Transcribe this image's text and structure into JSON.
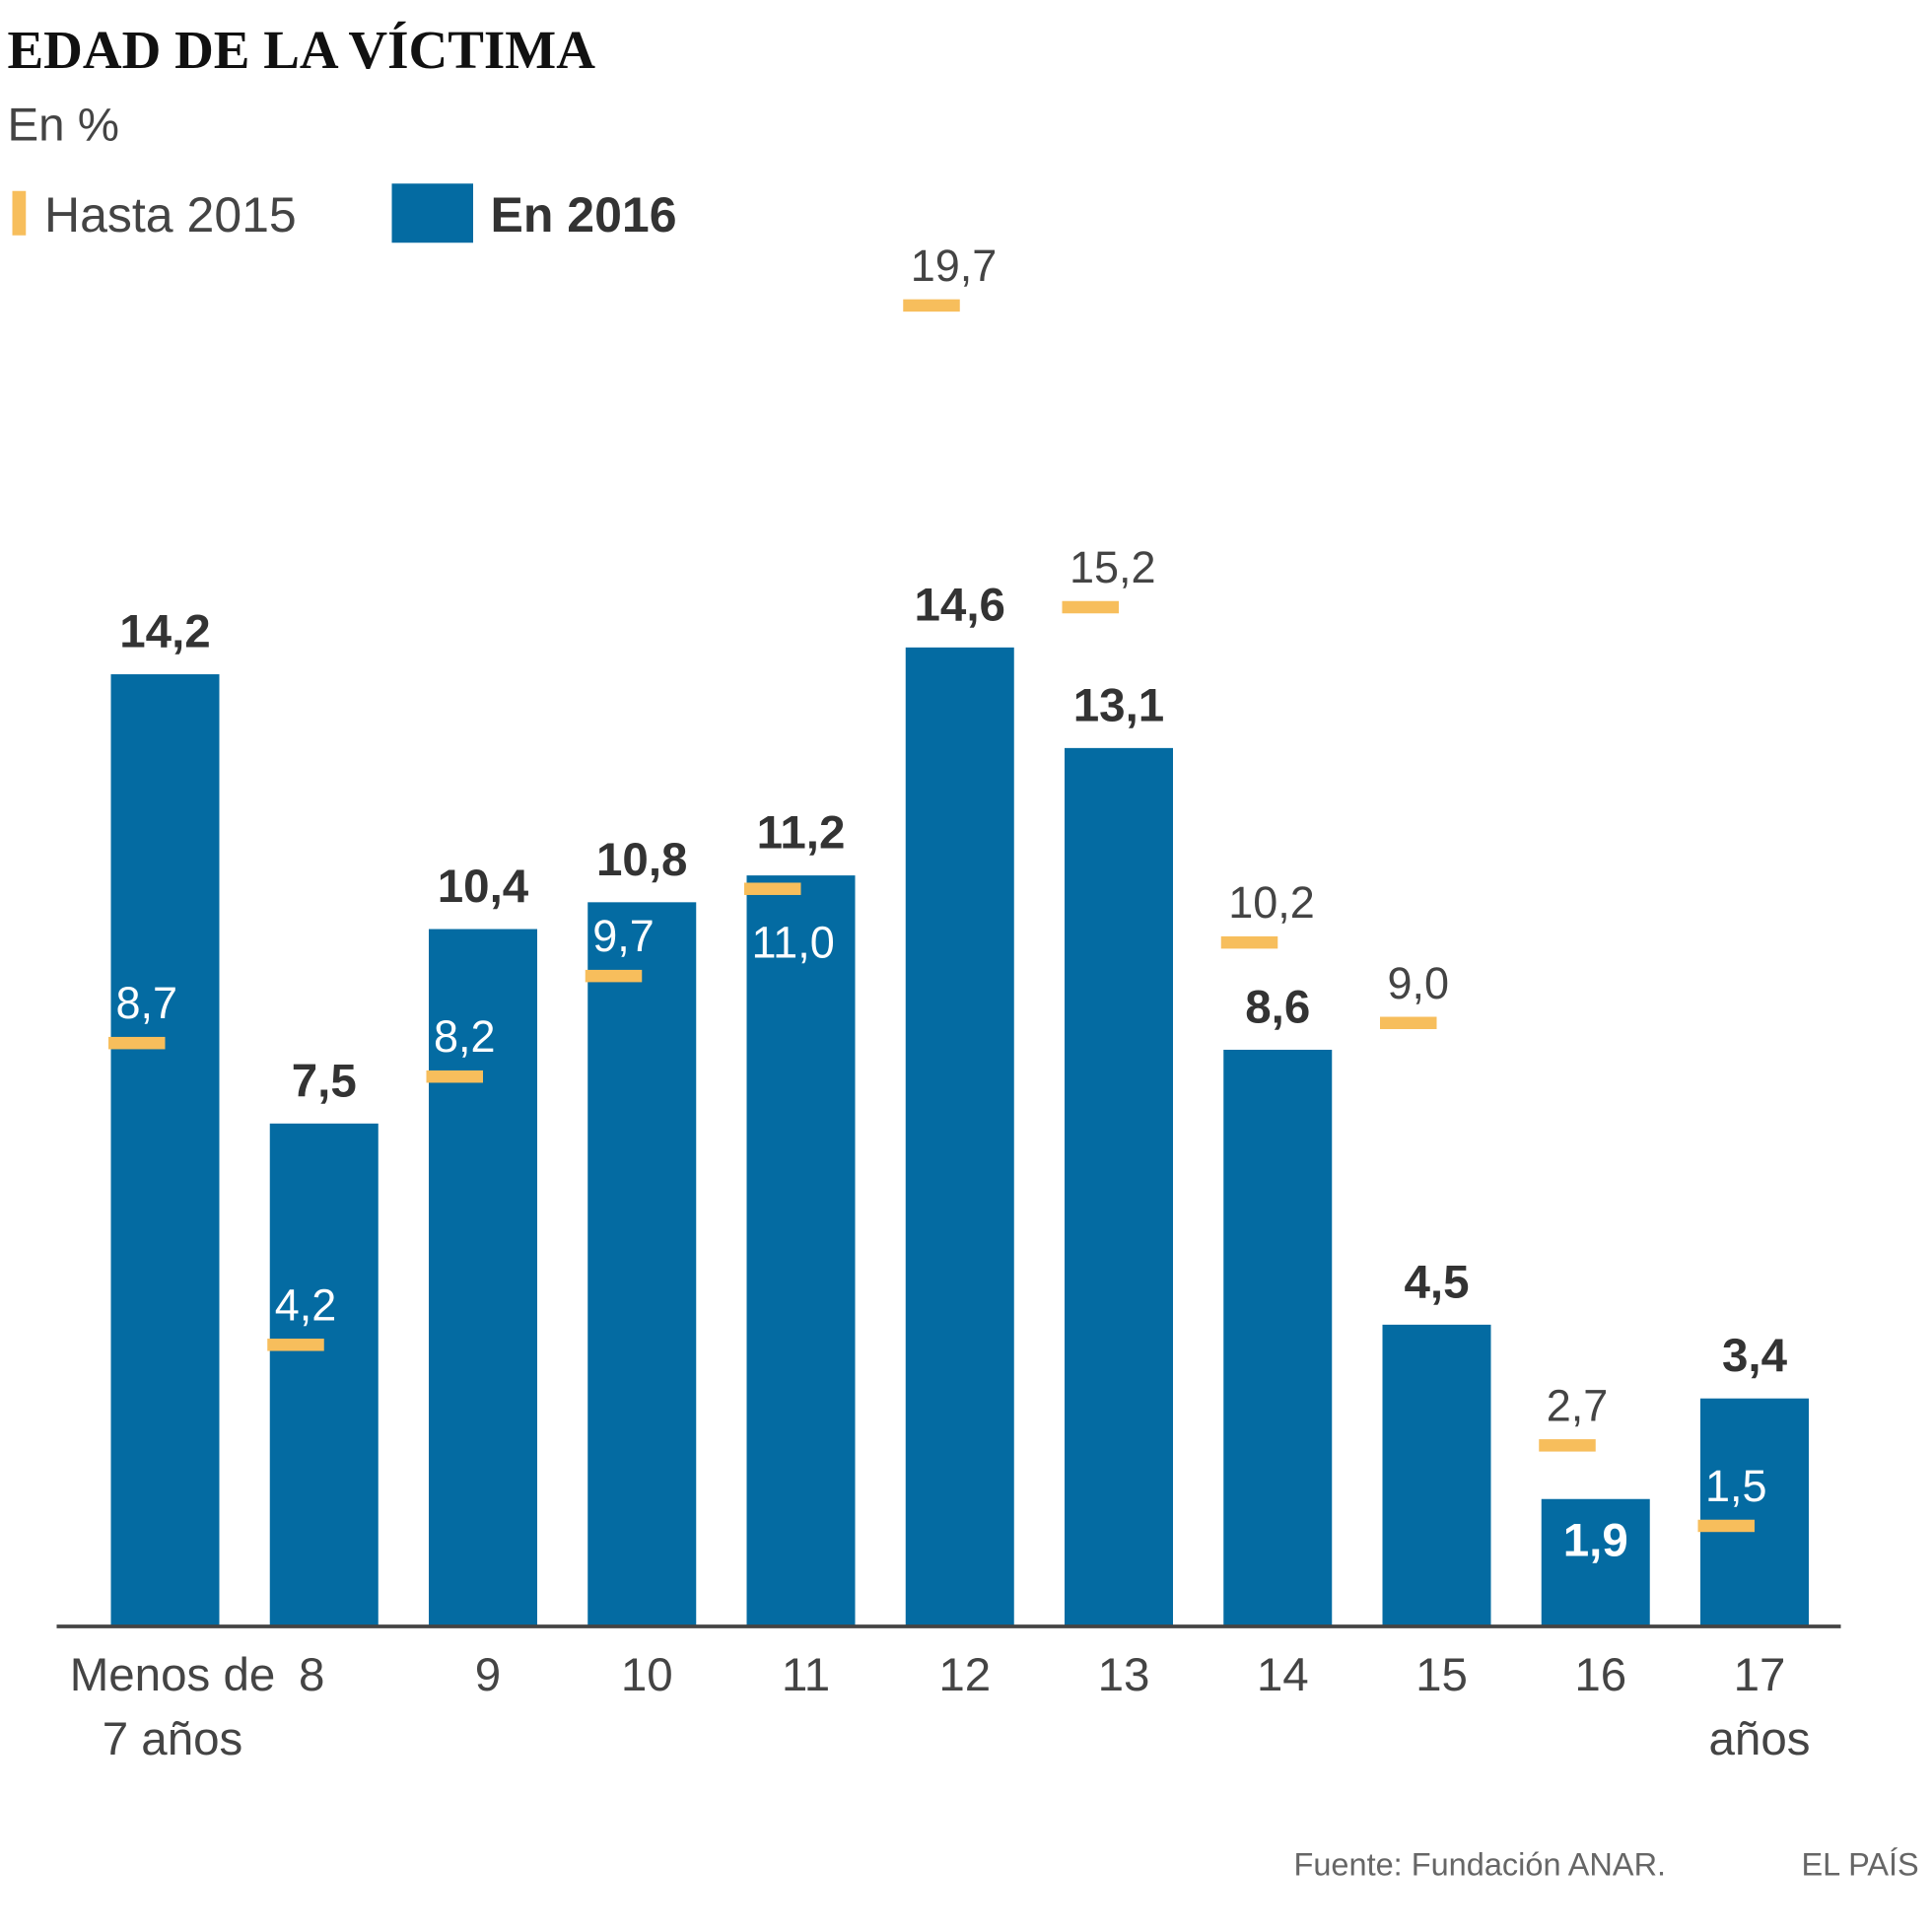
{
  "chart_data": {
    "type": "bar",
    "title": "EDAD DE LA VÍCTIMA",
    "subtitle": "En %",
    "categories": [
      [
        "Menos de",
        "7 años"
      ],
      [
        "8"
      ],
      [
        "9"
      ],
      [
        "10"
      ],
      [
        "11"
      ],
      [
        "12"
      ],
      [
        "13"
      ],
      [
        "14"
      ],
      [
        "15"
      ],
      [
        "16"
      ],
      [
        "17",
        "años"
      ]
    ],
    "series": [
      {
        "name": "En 2016",
        "mark": "bar",
        "color": "#046ba2",
        "values": [
          14.2,
          7.5,
          10.4,
          10.8,
          11.2,
          14.6,
          13.1,
          8.6,
          4.5,
          1.9,
          3.4
        ],
        "labels": [
          "14,2",
          "7,5",
          "10,4",
          "10,8",
          "11,2",
          "14,6",
          "13,1",
          "8,6",
          "4,5",
          "1,9",
          "3,4"
        ]
      },
      {
        "name": "Hasta 2015",
        "mark": "tick",
        "color": "#f7be5c",
        "values": [
          8.7,
          4.2,
          8.2,
          9.7,
          11.0,
          19.7,
          15.2,
          10.2,
          9.0,
          2.7,
          1.5
        ],
        "labels": [
          "8,7",
          "4,2",
          "8,2",
          "9,7",
          "11,0",
          "19,7",
          "15,2",
          "10,2",
          "9,0",
          "2,7",
          "1,5"
        ]
      }
    ],
    "ylim": [
      0,
      20
    ],
    "grid": false,
    "legend": "top-left"
  },
  "legend": {
    "hasta": "Hasta 2015",
    "en2016": "En 2016"
  },
  "footer": {
    "source": "Fuente: Fundación ANAR.",
    "brand": "EL PAÍS"
  }
}
